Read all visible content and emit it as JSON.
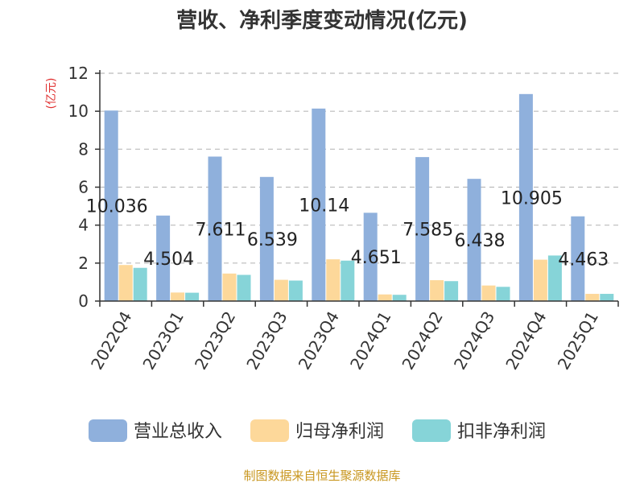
{
  "chart_data": {
    "type": "bar",
    "title": "营收、净利季度变动情况(亿元)",
    "ylabel": "(亿元)",
    "xlabel": "",
    "ylim": [
      0,
      12
    ],
    "yticks": [
      0,
      2,
      4,
      6,
      8,
      10,
      12
    ],
    "grid": true,
    "legend_position": "bottom",
    "categories": [
      "2022Q4",
      "2023Q1",
      "2023Q2",
      "2023Q3",
      "2023Q4",
      "2024Q1",
      "2024Q2",
      "2024Q3",
      "2024Q4",
      "2025Q1"
    ],
    "series": [
      {
        "name": "营业总收入",
        "color": "#8fb0dc",
        "values": [
          10.036,
          4.504,
          7.611,
          6.539,
          10.14,
          4.651,
          7.585,
          6.438,
          10.905,
          4.463
        ],
        "labels": [
          "10.036",
          "4.504",
          "7.611",
          "6.539",
          "10.14",
          "4.651",
          "7.585",
          "6.438",
          "10.905",
          "4.463"
        ]
      },
      {
        "name": "归母净利润",
        "color": "#fdd89a",
        "values": [
          1.9,
          0.45,
          1.45,
          1.12,
          2.2,
          0.35,
          1.1,
          0.82,
          2.18,
          0.38
        ]
      },
      {
        "name": "扣非净利润",
        "color": "#86d4d8",
        "values": [
          1.75,
          0.44,
          1.38,
          1.08,
          2.13,
          0.33,
          1.05,
          0.75,
          2.4,
          0.38
        ]
      }
    ],
    "source": "制图数据来自恒生聚源数据库"
  }
}
